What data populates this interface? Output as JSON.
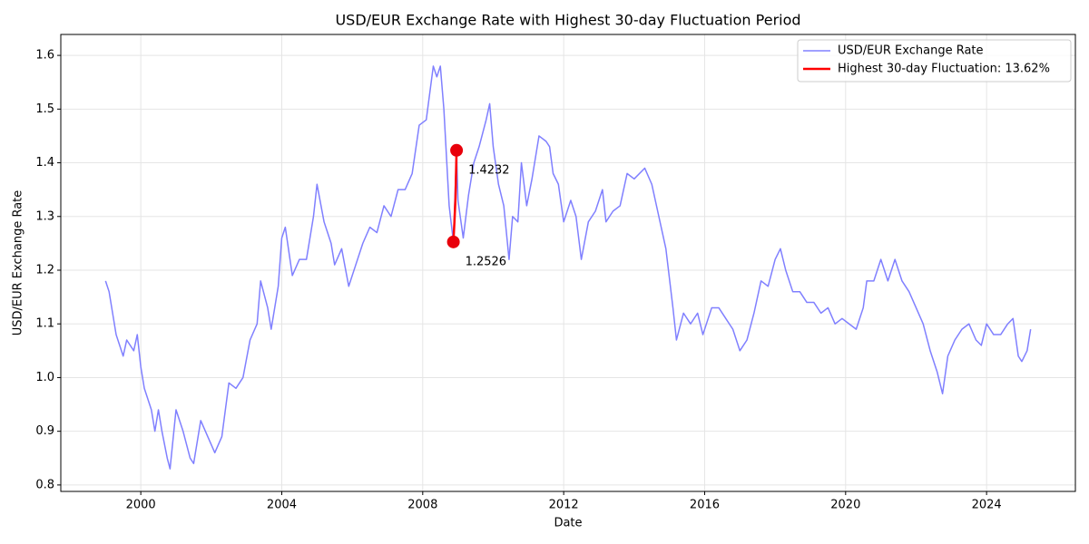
{
  "chart_data": {
    "type": "line",
    "title": "USD/EUR Exchange Rate with Highest 30-day Fluctuation Period",
    "x_label": "Date",
    "y_label": "USD/EUR Exchange Rate",
    "xlim": [
      1997.73,
      2026.52
    ],
    "xticks": [
      2000,
      2004,
      2008,
      2012,
      2016,
      2020,
      2024
    ],
    "ylim": [
      0.788,
      1.639
    ],
    "yticks": [
      {
        "value": 0.8,
        "label": "0.8"
      },
      {
        "value": 0.9,
        "label": "0.9"
      },
      {
        "value": 1.0,
        "label": "1.0"
      },
      {
        "value": 1.1,
        "label": "1.1"
      },
      {
        "value": 1.2,
        "label": "1.2"
      },
      {
        "value": 1.3,
        "label": "1.3"
      },
      {
        "value": 1.4,
        "label": "1.4"
      },
      {
        "value": 1.5,
        "label": "1.5"
      },
      {
        "value": 1.6,
        "label": "1.6"
      }
    ],
    "grid": true,
    "legend": "upper right",
    "series": [
      {
        "name": "USD/EUR Exchange Rate",
        "color": "#8080ff",
        "width": 1.5,
        "x": [
          1999.0,
          1999.1,
          1999.3,
          1999.5,
          1999.6,
          1999.8,
          1999.9,
          2000.0,
          2000.1,
          2000.3,
          2000.4,
          2000.5,
          2000.6,
          2000.75,
          2000.83,
          2001.0,
          2001.2,
          2001.4,
          2001.5,
          2001.7,
          2001.9,
          2002.1,
          2002.3,
          2002.5,
          2002.7,
          2002.9,
          2003.1,
          2003.3,
          2003.4,
          2003.6,
          2003.7,
          2003.9,
          2004.0,
          2004.1,
          2004.3,
          2004.5,
          2004.7,
          2004.9,
          2005.0,
          2005.2,
          2005.4,
          2005.5,
          2005.7,
          2005.9,
          2006.1,
          2006.3,
          2006.5,
          2006.7,
          2006.9,
          2007.1,
          2007.3,
          2007.5,
          2007.7,
          2007.9,
          2008.1,
          2008.3,
          2008.4,
          2008.5,
          2008.6,
          2008.75,
          2008.87,
          2008.96,
          2009.0,
          2009.15,
          2009.3,
          2009.45,
          2009.6,
          2009.8,
          2009.9,
          2010.0,
          2010.15,
          2010.3,
          2010.45,
          2010.55,
          2010.7,
          2010.8,
          2010.95,
          2011.1,
          2011.3,
          2011.5,
          2011.6,
          2011.7,
          2011.85,
          2012.0,
          2012.2,
          2012.35,
          2012.5,
          2012.7,
          2012.9,
          2013.1,
          2013.2,
          2013.4,
          2013.6,
          2013.8,
          2014.0,
          2014.3,
          2014.5,
          2014.7,
          2014.9,
          2015.1,
          2015.2,
          2015.4,
          2015.6,
          2015.8,
          2015.95,
          2016.2,
          2016.4,
          2016.6,
          2016.8,
          2017.0,
          2017.2,
          2017.4,
          2017.6,
          2017.8,
          2018.0,
          2018.15,
          2018.3,
          2018.5,
          2018.7,
          2018.9,
          2019.1,
          2019.3,
          2019.5,
          2019.7,
          2019.9,
          2020.1,
          2020.3,
          2020.5,
          2020.6,
          2020.8,
          2021.0,
          2021.2,
          2021.4,
          2021.6,
          2021.8,
          2022.0,
          2022.2,
          2022.4,
          2022.6,
          2022.75,
          2022.9,
          2023.1,
          2023.3,
          2023.5,
          2023.7,
          2023.85,
          2024.0,
          2024.2,
          2024.4,
          2024.6,
          2024.75,
          2024.9,
          2025.0,
          2025.15,
          2025.25
        ],
        "values": [
          1.18,
          1.16,
          1.08,
          1.04,
          1.07,
          1.05,
          1.08,
          1.02,
          0.98,
          0.94,
          0.9,
          0.94,
          0.9,
          0.85,
          0.83,
          0.94,
          0.9,
          0.85,
          0.84,
          0.92,
          0.89,
          0.86,
          0.89,
          0.99,
          0.98,
          1.0,
          1.07,
          1.1,
          1.18,
          1.13,
          1.09,
          1.17,
          1.26,
          1.28,
          1.19,
          1.22,
          1.22,
          1.3,
          1.36,
          1.29,
          1.25,
          1.21,
          1.24,
          1.17,
          1.21,
          1.25,
          1.28,
          1.27,
          1.32,
          1.3,
          1.35,
          1.35,
          1.38,
          1.47,
          1.48,
          1.58,
          1.56,
          1.58,
          1.5,
          1.32,
          1.2526,
          1.4232,
          1.33,
          1.26,
          1.34,
          1.4,
          1.43,
          1.48,
          1.51,
          1.43,
          1.36,
          1.32,
          1.22,
          1.3,
          1.29,
          1.4,
          1.32,
          1.37,
          1.45,
          1.44,
          1.43,
          1.38,
          1.36,
          1.29,
          1.33,
          1.3,
          1.22,
          1.29,
          1.31,
          1.35,
          1.29,
          1.31,
          1.32,
          1.38,
          1.37,
          1.39,
          1.36,
          1.3,
          1.24,
          1.13,
          1.07,
          1.12,
          1.1,
          1.12,
          1.08,
          1.13,
          1.13,
          1.11,
          1.09,
          1.05,
          1.07,
          1.12,
          1.18,
          1.17,
          1.22,
          1.24,
          1.2,
          1.16,
          1.16,
          1.14,
          1.14,
          1.12,
          1.13,
          1.1,
          1.11,
          1.1,
          1.09,
          1.13,
          1.18,
          1.18,
          1.22,
          1.18,
          1.22,
          1.18,
          1.16,
          1.13,
          1.1,
          1.05,
          1.01,
          0.97,
          1.04,
          1.07,
          1.09,
          1.1,
          1.07,
          1.06,
          1.1,
          1.08,
          1.08,
          1.1,
          1.11,
          1.04,
          1.03,
          1.05,
          1.09
        ]
      },
      {
        "name": "Highest 30-day Fluctuation: 13.62%",
        "color": "#ff0000",
        "width": 2.5,
        "x": [
          2008.87,
          2008.9,
          2008.93,
          2008.96
        ],
        "values": [
          1.2526,
          1.29,
          1.335,
          1.4232
        ]
      }
    ],
    "points": {
      "color": "#e8000b",
      "x": [
        2008.96,
        2008.87
      ],
      "values": [
        1.4232,
        1.2526
      ],
      "value_labels": [
        "1.4232",
        "1.2526"
      ]
    }
  }
}
